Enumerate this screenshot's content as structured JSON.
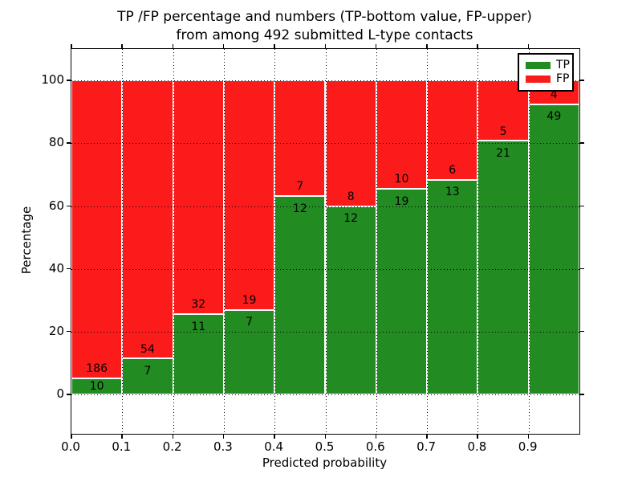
{
  "chart_data": {
    "type": "bar",
    "stacked": true,
    "title": "TP /FP percentage and numbers (TP-bottom value, FP-upper)",
    "subtitle": "from among 492 submitted L-type contacts",
    "xlabel": "Predicted probability",
    "ylabel": "Percentage",
    "x_tick_labels": [
      "0.0",
      "0.1",
      "0.2",
      "0.3",
      "0.4",
      "0.5",
      "0.6",
      "0.7",
      "0.8",
      "0.9"
    ],
    "x_tick_values": [
      0.0,
      0.1,
      0.2,
      0.3,
      0.4,
      0.5,
      0.6,
      0.7,
      0.8,
      0.9
    ],
    "y_ticks": [
      0,
      20,
      40,
      60,
      80,
      100
    ],
    "xlim": [
      0.0,
      1.0
    ],
    "ylim": [
      -12.5,
      110
    ],
    "grid": true,
    "bin_width": 0.1,
    "bin_starts": [
      0.0,
      0.1,
      0.2,
      0.3,
      0.4,
      0.5,
      0.6,
      0.7,
      0.8,
      0.9
    ],
    "total_contacts": 492,
    "series": [
      {
        "name": "TP",
        "color": "#228b22",
        "counts": [
          10,
          7,
          11,
          7,
          12,
          12,
          19,
          13,
          21,
          49
        ]
      },
      {
        "name": "FP",
        "color": "#fb1b1b",
        "counts": [
          186,
          54,
          32,
          19,
          7,
          8,
          10,
          6,
          5,
          4
        ]
      }
    ],
    "bar_value_labels": {
      "tp": [
        "10",
        "7",
        "11",
        "7",
        "12",
        "12",
        "19",
        "13",
        "21",
        "49"
      ],
      "fp": [
        "186",
        "54",
        "32",
        "19",
        "7",
        "8",
        "10",
        "6",
        "5",
        "4"
      ]
    },
    "legend": {
      "position": "upper right",
      "entries": [
        {
          "label": "TP",
          "color": "#228b22"
        },
        {
          "label": "FP",
          "color": "#fb1b1b"
        }
      ]
    }
  }
}
